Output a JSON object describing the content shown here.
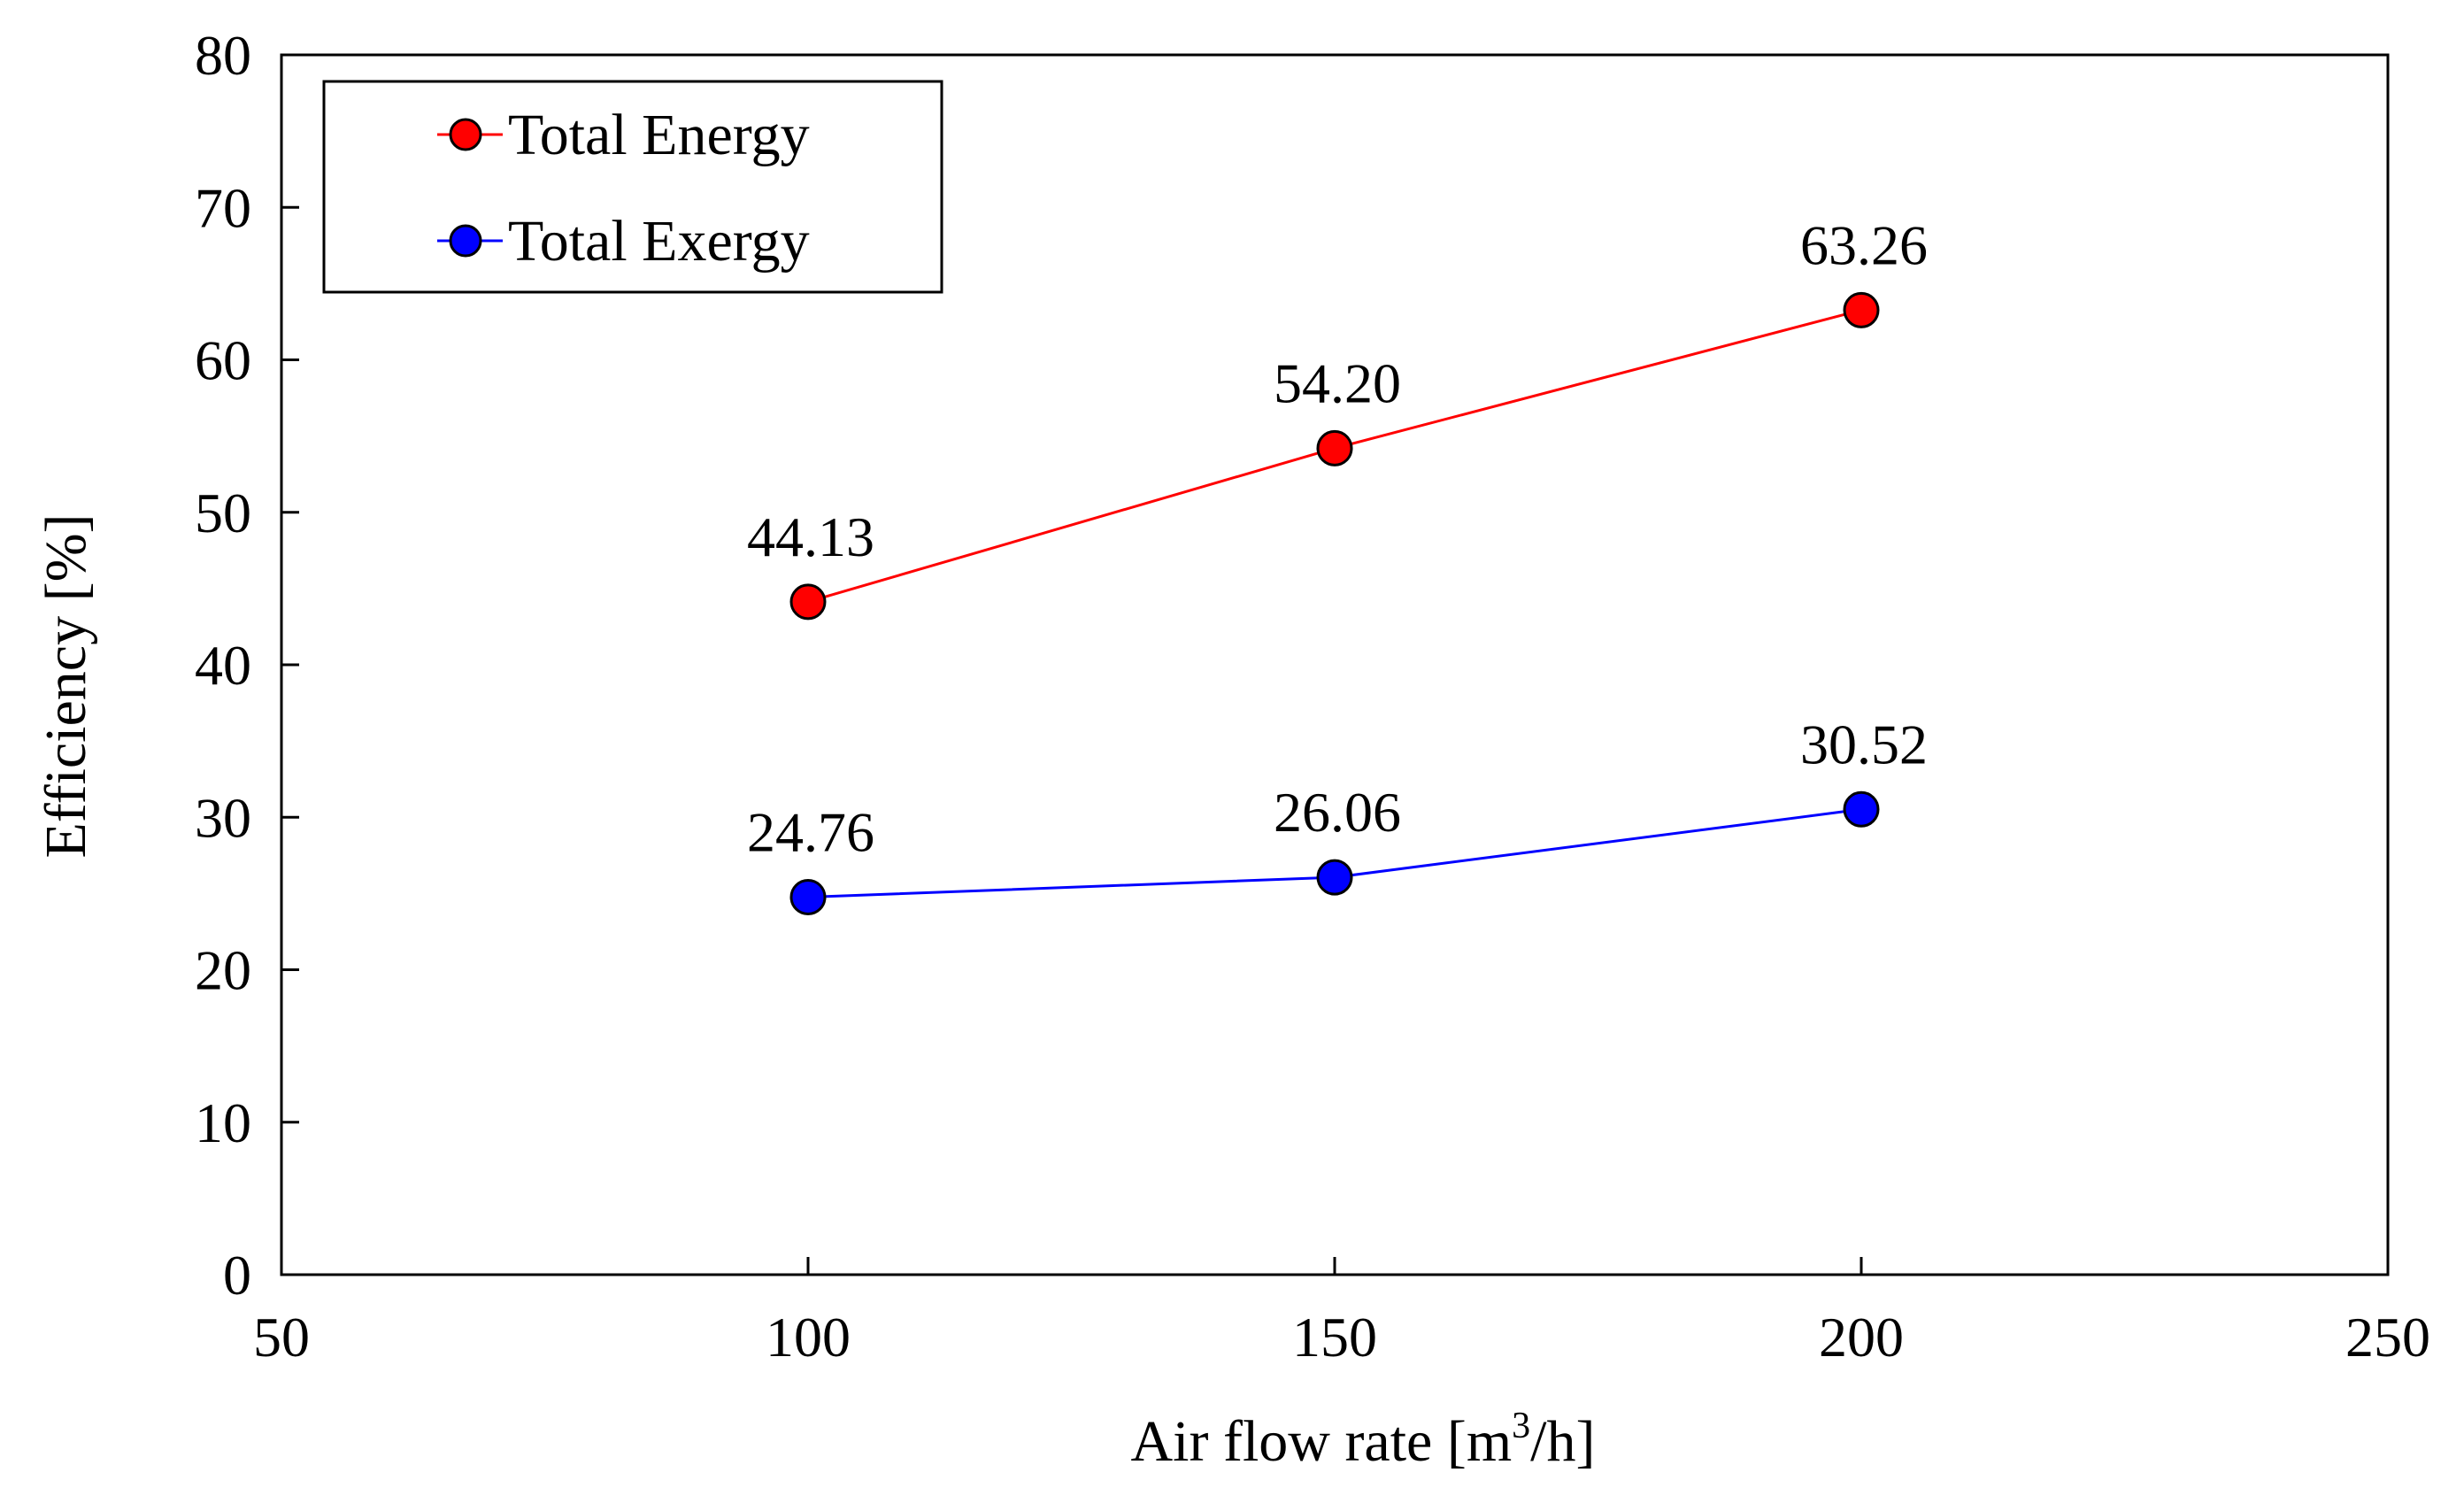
{
  "chart_data": {
    "type": "line",
    "title": "",
    "xlabel": "Air flow rate [m",
    "xlabel_sup": "3",
    "xlabel_tail": "/h]",
    "ylabel": "Efficiency [%]",
    "xlim": [
      50,
      250
    ],
    "ylim": [
      0,
      80
    ],
    "xticks": [
      50,
      100,
      150,
      200,
      250
    ],
    "yticks": [
      0,
      10,
      20,
      30,
      40,
      50,
      60,
      70,
      80
    ],
    "grid": false,
    "legend_position": "top-left",
    "x": [
      100,
      150,
      200
    ],
    "series": [
      {
        "name": "Total Energy",
        "color": "#ff0000",
        "values": [
          44.13,
          54.2,
          63.26
        ],
        "labels": [
          "44.13",
          "54.20",
          "63.26"
        ]
      },
      {
        "name": "Total Exergy",
        "color": "#0000ff",
        "values": [
          24.76,
          26.06,
          30.52
        ],
        "labels": [
          "24.76",
          "26.06",
          "30.52"
        ]
      }
    ]
  }
}
